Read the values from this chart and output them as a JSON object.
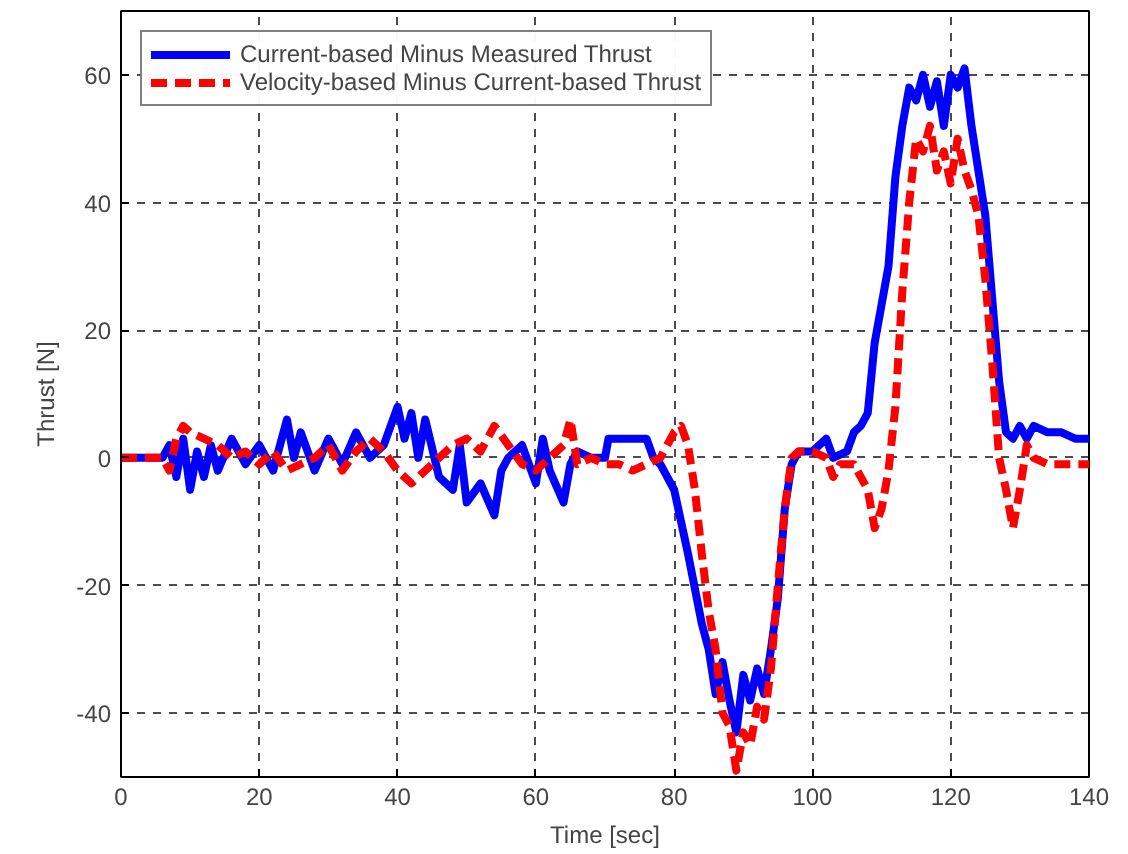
{
  "chart_data": {
    "type": "line",
    "xlabel": "Time [sec]",
    "ylabel": "Thrust [N]",
    "xlim": [
      0,
      140
    ],
    "ylim": [
      -50,
      70
    ],
    "xticks": [
      0,
      20,
      40,
      60,
      80,
      100,
      120,
      140
    ],
    "yticks": [
      -40,
      -20,
      0,
      20,
      40,
      60
    ],
    "grid": true,
    "legend": "top left",
    "series": [
      {
        "name": "Current-based Minus Measured Thrust",
        "color": "#0000ff",
        "line_style": "solid",
        "x": [
          0,
          6,
          7,
          8,
          9,
          10,
          11,
          12,
          13,
          14,
          16,
          18,
          20,
          22,
          24,
          25,
          26,
          28,
          30,
          32,
          34,
          36,
          38,
          40,
          41,
          42,
          43,
          44,
          46,
          48,
          49,
          50,
          52,
          54,
          55,
          56,
          58,
          60,
          61,
          62,
          64,
          65,
          66,
          68,
          70,
          70.5,
          76,
          77,
          78,
          80,
          82,
          84,
          85,
          86,
          87,
          88,
          89,
          90,
          91,
          92,
          93,
          94,
          95,
          96,
          97,
          98,
          100,
          102,
          103,
          105,
          106,
          107,
          108,
          109,
          110,
          111,
          112,
          113,
          114,
          115,
          116,
          117,
          118,
          119,
          120,
          121,
          122,
          123,
          124,
          125,
          126,
          127,
          128,
          129,
          130,
          131,
          132,
          134,
          136,
          138,
          140
        ],
        "values": [
          0,
          0,
          2,
          -3,
          3,
          -5,
          1,
          -3,
          2,
          -2,
          3,
          -1,
          2,
          -2,
          6,
          0,
          4,
          -2,
          3,
          -1,
          4,
          0,
          2,
          8,
          3,
          7,
          0,
          6,
          -3,
          -5,
          2,
          -7,
          -4,
          -9,
          -2,
          0,
          2,
          -4,
          3,
          -2,
          -7,
          -1,
          1,
          0,
          0,
          3,
          3,
          0,
          -1,
          -5,
          -15,
          -26,
          -30,
          -37,
          -32,
          -38,
          -43,
          -34,
          -38,
          -33,
          -37,
          -30,
          -22,
          -8,
          -1,
          1,
          1,
          3,
          0,
          1,
          4,
          5,
          7,
          18,
          24,
          30,
          44,
          52,
          58,
          56,
          60,
          55,
          59,
          52,
          60,
          58,
          61,
          52,
          45,
          38,
          25,
          12,
          4,
          3,
          5,
          3,
          5,
          4,
          4,
          3,
          3
        ]
      },
      {
        "name": "Velocity-based Minus Current-based Thrust",
        "color": "#ff0000",
        "line_style": "dashed",
        "x": [
          0,
          6,
          7,
          8,
          9,
          10,
          12,
          14,
          16,
          18,
          20,
          22,
          24,
          26,
          28,
          30,
          32,
          34,
          36,
          38,
          40,
          42,
          44,
          46,
          48,
          50,
          52,
          54,
          56,
          58,
          60,
          62,
          64,
          65,
          66,
          68,
          70,
          72,
          74,
          76,
          78,
          80,
          81,
          82,
          83,
          84,
          85,
          86,
          87,
          88,
          89,
          90,
          91,
          92,
          93,
          94,
          95,
          96,
          97,
          98,
          100,
          102,
          103,
          104,
          106,
          108,
          109,
          110,
          111,
          112,
          113,
          114,
          115,
          116,
          117,
          118,
          119,
          120,
          121,
          122,
          123,
          124,
          125,
          126,
          127,
          128,
          129,
          130,
          131,
          132,
          134,
          140
        ],
        "values": [
          0,
          0,
          -2,
          3,
          5,
          4,
          3,
          2,
          0,
          1,
          -1,
          1,
          -2,
          -1,
          0,
          2,
          -2,
          1,
          3,
          1,
          -2,
          -4,
          -2,
          0,
          2,
          3,
          1,
          5,
          2,
          -1,
          -2,
          0,
          2,
          6,
          -1,
          0,
          -1,
          -1,
          -2,
          -1,
          0,
          4,
          5,
          2,
          -5,
          -15,
          -24,
          -30,
          -40,
          -42,
          -49,
          -43,
          -45,
          -39,
          -41,
          -33,
          -20,
          -8,
          0,
          1,
          1,
          0,
          -3,
          -1,
          -1,
          -5,
          -11,
          -8,
          -2,
          8,
          26,
          40,
          50,
          48,
          52,
          45,
          48,
          43,
          50,
          45,
          42,
          38,
          28,
          15,
          0,
          -5,
          -11,
          -5,
          2,
          0,
          -1,
          -1
        ]
      }
    ]
  }
}
